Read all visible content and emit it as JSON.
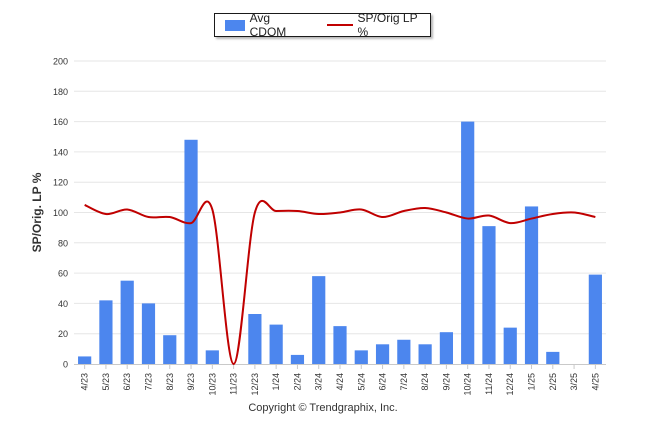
{
  "chart_data": {
    "type": "bar",
    "categories": [
      "4/23",
      "5/23",
      "6/23",
      "7/23",
      "8/23",
      "9/23",
      "10/23",
      "11/23",
      "12/23",
      "1/24",
      "2/24",
      "3/24",
      "4/24",
      "5/24",
      "6/24",
      "7/24",
      "8/24",
      "9/24",
      "10/24",
      "11/24",
      "12/24",
      "1/25",
      "2/25",
      "3/25",
      "4/25"
    ],
    "ylabel": "SP/Orig. LP %",
    "ylim": [
      0,
      200
    ],
    "yticks": [
      0,
      20,
      40,
      60,
      80,
      100,
      120,
      140,
      160,
      180,
      200
    ],
    "grid": true,
    "legend_position": "top-center",
    "series": [
      {
        "name": "Avg CDOM",
        "type": "bar",
        "color": "#4c86ee",
        "values": [
          5,
          42,
          55,
          40,
          19,
          148,
          9,
          null,
          33,
          26,
          6,
          58,
          25,
          9,
          13,
          16,
          13,
          21,
          160,
          91,
          24,
          104,
          8,
          null,
          59
        ]
      },
      {
        "name": "SP/Orig LP %",
        "type": "line",
        "color": "#c00000",
        "values": [
          105,
          99,
          102,
          97,
          97,
          93,
          102,
          0,
          100,
          101,
          101,
          99,
          100,
          102,
          97,
          101,
          103,
          100,
          96,
          98,
          93,
          96,
          99,
          100,
          97
        ]
      }
    ]
  },
  "footer": {
    "copyright": "Copyright © Trendgraphix, Inc."
  }
}
